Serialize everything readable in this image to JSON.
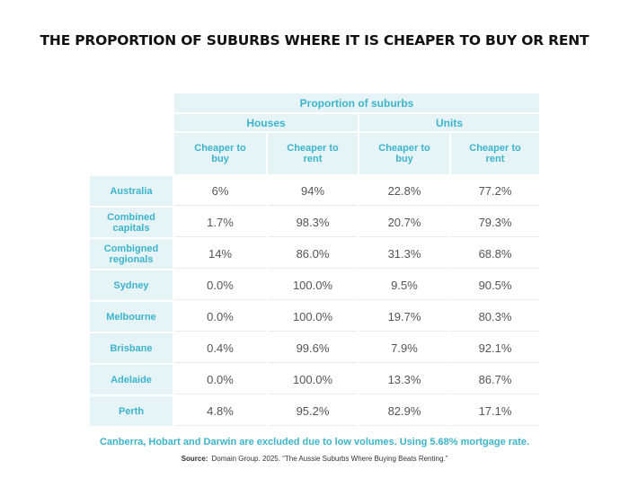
{
  "title": "THE PROPORTION OF SUBURBS WHERE IT IS CHEAPER TO BUY OR RENT",
  "table": {
    "group_header": "Proportion of suburbs",
    "subgroups": [
      "Houses",
      "Units"
    ],
    "columns": [
      "Cheaper to buy",
      "Cheaper to rent",
      "Cheaper to buy",
      "Cheaper to rent"
    ],
    "rows": [
      {
        "label": "Australia",
        "values": [
          "6%",
          "94%",
          "22.8%",
          "77.2%"
        ]
      },
      {
        "label": "Combined capitals",
        "values": [
          "1.7%",
          "98.3%",
          "20.7%",
          "79.3%"
        ]
      },
      {
        "label": "Combigned regionals",
        "values": [
          "14%",
          "86.0%",
          "31.3%",
          "68.8%"
        ]
      },
      {
        "label": "Sydney",
        "values": [
          "0.0%",
          "100.0%",
          "9.5%",
          "90.5%"
        ]
      },
      {
        "label": "Melbourne",
        "values": [
          "0.0%",
          "100.0%",
          "19.7%",
          "80.3%"
        ]
      },
      {
        "label": "Brisbane",
        "values": [
          "0.4%",
          "99.6%",
          "7.9%",
          "92.1%"
        ]
      },
      {
        "label": "Adelaide",
        "values": [
          "0.0%",
          "100.0%",
          "13.3%",
          "86.7%"
        ]
      },
      {
        "label": "Perth",
        "values": [
          "4.8%",
          "95.2%",
          "82.9%",
          "17.1%"
        ]
      }
    ]
  },
  "note": "Canberra, Hobart and Darwin are excluded due to low volumes. Using 5.68% mortgage rate.",
  "source": {
    "label": "Source:",
    "text": "Domain Group. 2025. “The Aussie Suburbs Where Buying Beats Renting.”"
  },
  "colors": {
    "header_bg": "#e6f4f8",
    "accent_text": "#3bb4cc",
    "body_text": "#555555"
  }
}
